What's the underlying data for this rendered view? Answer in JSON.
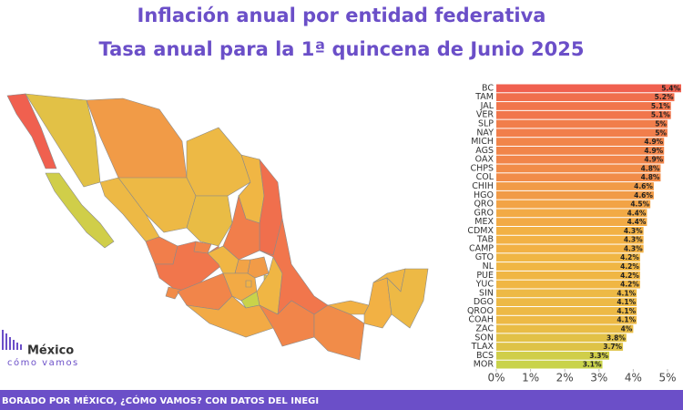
{
  "chart_data": {
    "type": "bar",
    "orientation": "horizontal",
    "title": "Inflación anual por entidad federativa",
    "subtitle": "Tasa anual para la 1ª quincena de Junio 2025",
    "categories": [
      "BC",
      "TAM",
      "JAL",
      "VER",
      "SLP",
      "NAY",
      "MICH",
      "AGS",
      "OAX",
      "CHPS",
      "COL",
      "CHIH",
      "HGO",
      "QRO",
      "GRO",
      "MEX",
      "CDMX",
      "TAB",
      "CAMP",
      "GTO",
      "NL",
      "PUE",
      "YUC",
      "SIN",
      "DGO",
      "QROO",
      "COAH",
      "ZAC",
      "SON",
      "TLAX",
      "BCS",
      "MOR"
    ],
    "values": [
      5.4,
      5.2,
      5.1,
      5.1,
      5,
      5,
      4.9,
      4.9,
      4.9,
      4.8,
      4.8,
      4.6,
      4.6,
      4.5,
      4.4,
      4.4,
      4.3,
      4.3,
      4.3,
      4.2,
      4.2,
      4.2,
      4.2,
      4.1,
      4.1,
      4.1,
      4.1,
      4,
      3.8,
      3.7,
      3.3,
      3.1
    ],
    "value_labels": [
      "5.4%",
      "5.2%",
      "5.1%",
      "5.1%",
      "5%",
      "5%",
      "4.9%",
      "4.9%",
      "4.9%",
      "4.8%",
      "4.8%",
      "4.6%",
      "4.6%",
      "4.5%",
      "4.4%",
      "4.4%",
      "4.3%",
      "4.3%",
      "4.3%",
      "4.2%",
      "4.2%",
      "4.2%",
      "4.2%",
      "4.1%",
      "4.1%",
      "4.1%",
      "4.1%",
      "4%",
      "3.8%",
      "3.7%",
      "3.3%",
      "3.1%"
    ],
    "color_scale": [
      "#c9d34a",
      "#f2b544",
      "#f0604f"
    ],
    "xlim": [
      0,
      5.4
    ],
    "xticks": [
      {
        "value": 0,
        "label": "0%"
      },
      {
        "value": 1,
        "label": "1%"
      },
      {
        "value": 2,
        "label": "2%"
      },
      {
        "value": 3,
        "label": "3%"
      },
      {
        "value": 4,
        "label": "4%"
      },
      {
        "value": 5,
        "label": "5%"
      }
    ],
    "logo": {
      "name": "México",
      "tagline": "cómo vamos"
    },
    "footer": "BORADO POR MÉXICO, ¿CÓMO VAMOS? CON DATOS DEL INEGI"
  }
}
